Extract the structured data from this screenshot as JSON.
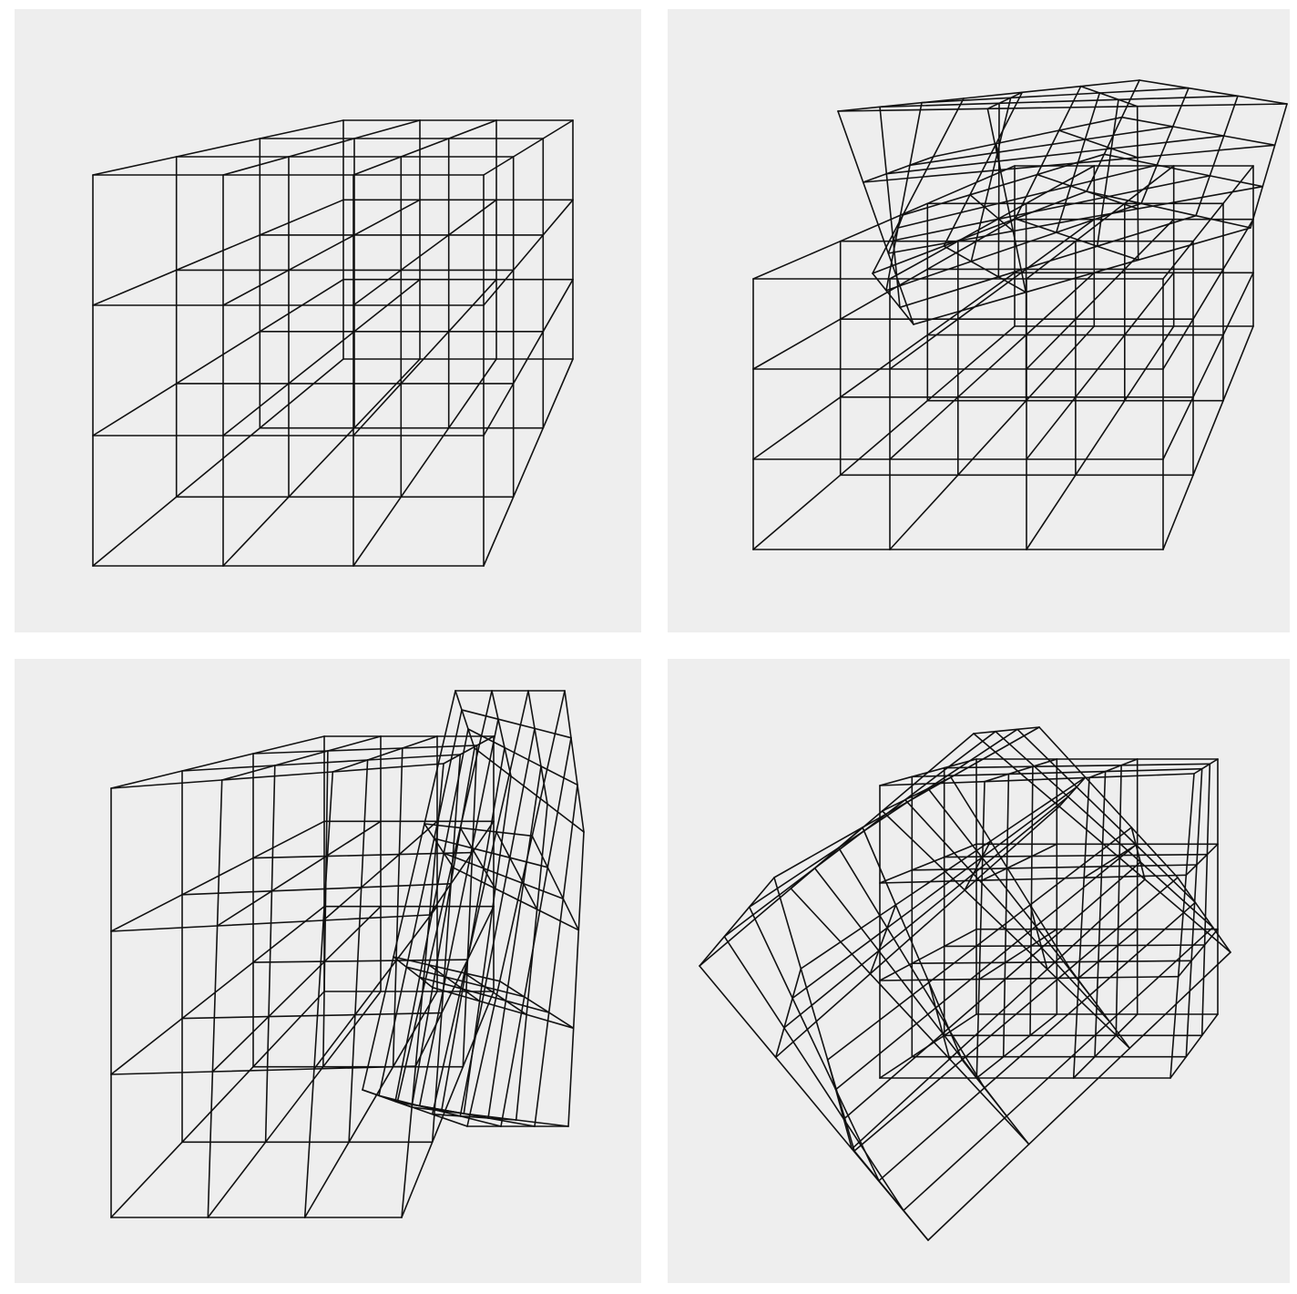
{
  "colors": {
    "background": "#ffffff",
    "panel": "#eeeeee",
    "stroke": "#111111"
  },
  "panels": [
    {
      "name": "panel-grid-aligned",
      "state": "cube arrangement, no rotation"
    },
    {
      "name": "panel-grid-top-slice",
      "state": "top layer rotated"
    },
    {
      "name": "panel-grid-side-slice",
      "state": "right column rotated"
    },
    {
      "name": "panel-grid-tilted",
      "state": "block rotated diagonally"
    }
  ]
}
